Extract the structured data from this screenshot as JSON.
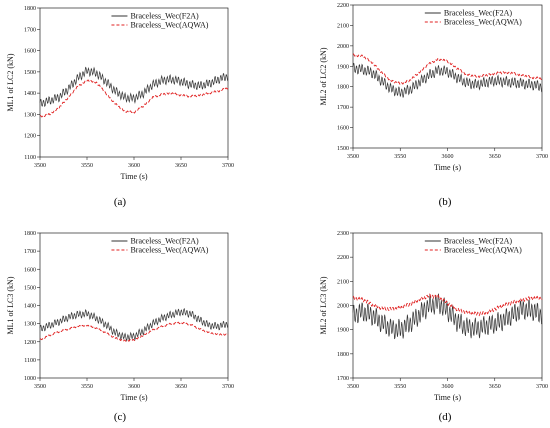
{
  "chart_data": [
    {
      "type": "line",
      "panel_label": "(a)",
      "xlabel": "Time (s)",
      "ylabel": "ML1 of LC2 (kN)",
      "xlim": [
        3500,
        3700
      ],
      "ylim": [
        1100,
        1800
      ],
      "xticks": [
        3500,
        3550,
        3600,
        3650,
        3700
      ],
      "yticks": [
        1100,
        1200,
        1300,
        1400,
        1500,
        1600,
        1700,
        1800
      ],
      "legend": "top",
      "series": [
        {
          "name": "Braceless_Wec(F2A)",
          "color": "#333333",
          "dash": "solid",
          "x": [
            3500,
            3510,
            3520,
            3530,
            3540,
            3550,
            3560,
            3570,
            3580,
            3590,
            3600,
            3610,
            3620,
            3630,
            3640,
            3650,
            3660,
            3670,
            3680,
            3690,
            3700
          ],
          "y": [
            1350,
            1365,
            1380,
            1420,
            1470,
            1505,
            1495,
            1455,
            1410,
            1380,
            1375,
            1400,
            1440,
            1460,
            1465,
            1455,
            1440,
            1435,
            1445,
            1465,
            1480
          ],
          "osc_amp": 22
        },
        {
          "name": "Braceless_Wec(AQWA)",
          "color": "#e02020",
          "dash": "dashed",
          "x": [
            3500,
            3510,
            3520,
            3530,
            3540,
            3550,
            3560,
            3570,
            3580,
            3590,
            3600,
            3610,
            3620,
            3630,
            3640,
            3650,
            3660,
            3670,
            3680,
            3690,
            3700
          ],
          "y": [
            1290,
            1300,
            1330,
            1380,
            1430,
            1460,
            1450,
            1400,
            1350,
            1315,
            1310,
            1340,
            1380,
            1395,
            1400,
            1390,
            1385,
            1390,
            1400,
            1410,
            1425
          ],
          "osc_amp": 5
        }
      ]
    },
    {
      "type": "line",
      "panel_label": "(b)",
      "xlabel": "Time (s)",
      "ylabel": "ML2 of LC2 (kN)",
      "xlim": [
        3500,
        3700
      ],
      "ylim": [
        1500,
        2200
      ],
      "xticks": [
        3500,
        3550,
        3600,
        3650,
        3700
      ],
      "yticks": [
        1500,
        1600,
        1700,
        1800,
        1900,
        2000,
        2100,
        2200
      ],
      "legend": "top",
      "series": [
        {
          "name": "Braceless_Wec(F2A)",
          "color": "#333333",
          "dash": "solid",
          "x": [
            3500,
            3510,
            3520,
            3530,
            3540,
            3550,
            3560,
            3570,
            3580,
            3590,
            3600,
            3610,
            3620,
            3630,
            3640,
            3650,
            3660,
            3670,
            3680,
            3690,
            3700
          ],
          "y": [
            1890,
            1885,
            1870,
            1830,
            1790,
            1770,
            1785,
            1820,
            1855,
            1880,
            1875,
            1845,
            1820,
            1810,
            1820,
            1830,
            1825,
            1820,
            1815,
            1810,
            1800
          ],
          "osc_amp": 28
        },
        {
          "name": "Braceless_Wec(AQWA)",
          "color": "#e02020",
          "dash": "dashed",
          "x": [
            3500,
            3510,
            3520,
            3530,
            3540,
            3550,
            3560,
            3570,
            3580,
            3590,
            3600,
            3610,
            3620,
            3630,
            3640,
            3650,
            3660,
            3670,
            3680,
            3690,
            3700
          ],
          "y": [
            1955,
            1950,
            1920,
            1870,
            1830,
            1815,
            1830,
            1870,
            1910,
            1935,
            1925,
            1890,
            1860,
            1850,
            1855,
            1865,
            1870,
            1865,
            1855,
            1845,
            1840
          ],
          "osc_amp": 6
        }
      ]
    },
    {
      "type": "line",
      "panel_label": "(c)",
      "xlabel": "Time (s)",
      "ylabel": "ML1 of LC3 (kN)",
      "xlim": [
        3500,
        3700
      ],
      "ylim": [
        1000,
        1800
      ],
      "xticks": [
        3500,
        3550,
        3600,
        3650,
        3700
      ],
      "yticks": [
        1000,
        1100,
        1200,
        1300,
        1400,
        1500,
        1600,
        1700,
        1800
      ],
      "legend": "top",
      "series": [
        {
          "name": "Braceless_Wec(F2A)",
          "color": "#333333",
          "dash": "solid",
          "x": [
            3500,
            3510,
            3520,
            3530,
            3540,
            3550,
            3560,
            3570,
            3580,
            3590,
            3600,
            3610,
            3620,
            3630,
            3640,
            3650,
            3660,
            3670,
            3680,
            3690,
            3700
          ],
          "y": [
            1270,
            1290,
            1310,
            1335,
            1350,
            1355,
            1330,
            1295,
            1250,
            1225,
            1230,
            1260,
            1300,
            1330,
            1350,
            1365,
            1355,
            1320,
            1290,
            1285,
            1300
          ],
          "osc_amp": 22
        },
        {
          "name": "Braceless_Wec(AQWA)",
          "color": "#e02020",
          "dash": "dashed",
          "x": [
            3500,
            3510,
            3520,
            3530,
            3540,
            3550,
            3560,
            3570,
            3580,
            3590,
            3600,
            3610,
            3620,
            3630,
            3640,
            3650,
            3660,
            3670,
            3680,
            3690,
            3700
          ],
          "y": [
            1210,
            1235,
            1255,
            1270,
            1285,
            1290,
            1275,
            1250,
            1220,
            1205,
            1210,
            1235,
            1265,
            1285,
            1300,
            1305,
            1295,
            1270,
            1250,
            1240,
            1240
          ],
          "osc_amp": 5
        }
      ]
    },
    {
      "type": "line",
      "panel_label": "(d)",
      "xlabel": "Time (s)",
      "ylabel": "ML2 of LC3 (kN)",
      "xlim": [
        3500,
        3700
      ],
      "ylim": [
        1700,
        2300
      ],
      "xticks": [
        3500,
        3550,
        3600,
        3650,
        3700
      ],
      "yticks": [
        1700,
        1800,
        1900,
        2000,
        2100,
        2200,
        2300
      ],
      "legend": "top",
      "series": [
        {
          "name": "Braceless_Wec(F2A)",
          "color": "#333333",
          "dash": "solid",
          "x": [
            3500,
            3510,
            3520,
            3530,
            3540,
            3550,
            3560,
            3570,
            3580,
            3590,
            3600,
            3610,
            3620,
            3630,
            3640,
            3650,
            3660,
            3670,
            3680,
            3690,
            3700
          ],
          "y": [
            1960,
            1975,
            1960,
            1930,
            1905,
            1900,
            1925,
            1960,
            2000,
            2010,
            1980,
            1935,
            1910,
            1905,
            1915,
            1925,
            1940,
            1965,
            1985,
            1980,
            1960
          ],
          "osc_amp": 45
        },
        {
          "name": "Braceless_Wec(AQWA)",
          "color": "#e02020",
          "dash": "dashed",
          "x": [
            3500,
            3510,
            3520,
            3530,
            3540,
            3550,
            3560,
            3570,
            3580,
            3590,
            3600,
            3610,
            3620,
            3630,
            3640,
            3650,
            3660,
            3670,
            3680,
            3690,
            3700
          ],
          "y": [
            2030,
            2025,
            2005,
            1990,
            1985,
            1990,
            2005,
            2025,
            2040,
            2035,
            2010,
            1985,
            1970,
            1965,
            1970,
            1985,
            2000,
            2015,
            2025,
            2030,
            2030
          ],
          "osc_amp": 8
        }
      ]
    }
  ]
}
